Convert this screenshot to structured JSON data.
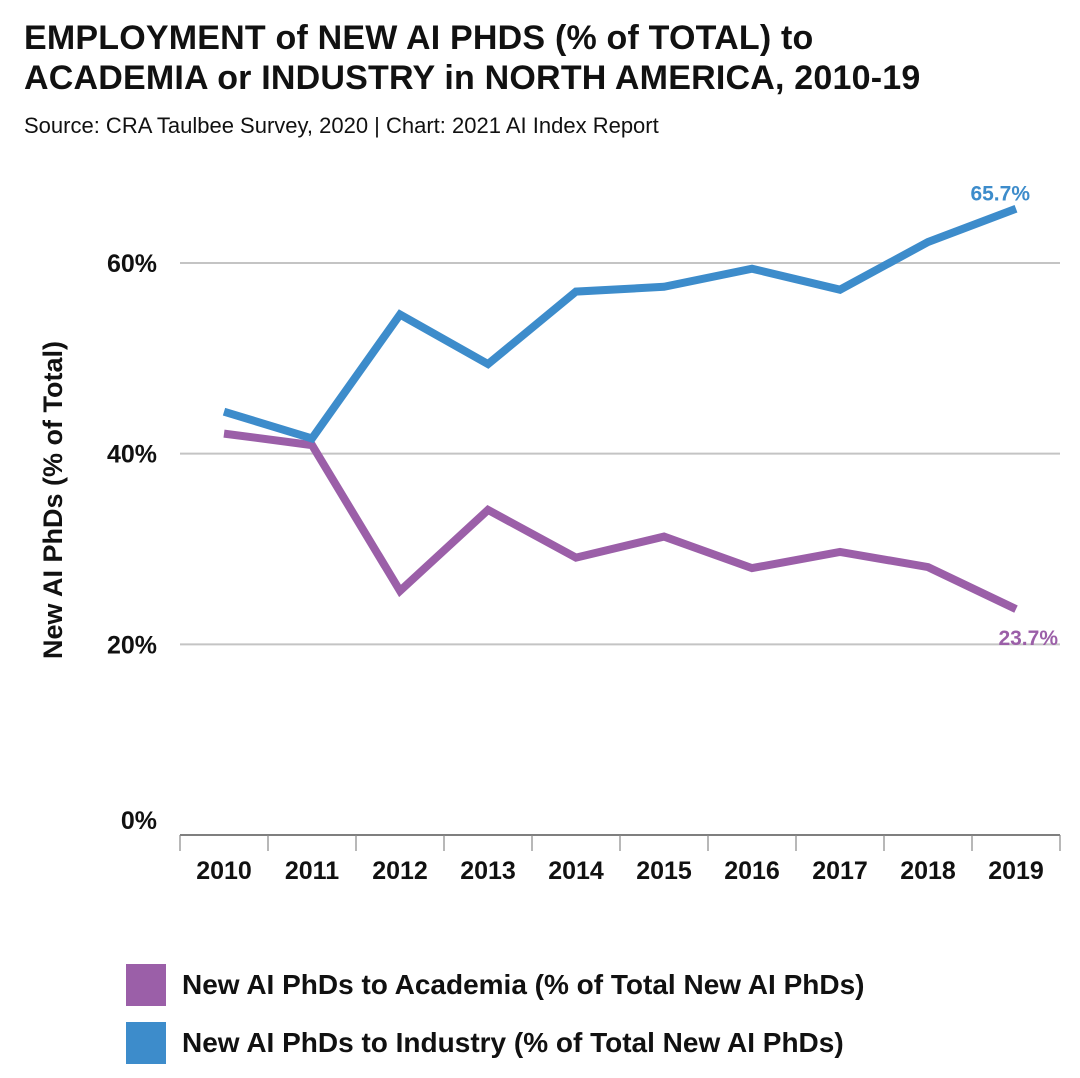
{
  "chart_data": {
    "type": "line",
    "title_lines": [
      "EMPLOYMENT of NEW AI PHDS (% of TOTAL) to",
      "ACADEMIA or INDUSTRY in NORTH AMERICA, 2010-19"
    ],
    "subtitle": "Source: CRA Taulbee Survey, 2020 | Chart: 2021 AI Index Report",
    "ylabel": "New AI PhDs (% of Total)",
    "xlabel": "",
    "ylim": [
      0,
      70
    ],
    "yticks": [
      0,
      20,
      40,
      60
    ],
    "ytick_labels": [
      "0%",
      "20%",
      "40%",
      "60%"
    ],
    "grid": true,
    "categories": [
      "2010",
      "2011",
      "2012",
      "2013",
      "2014",
      "2015",
      "2016",
      "2017",
      "2018",
      "2019"
    ],
    "series": [
      {
        "name": "New AI PhDs to Academia (% of Total New AI PhDs)",
        "color": "#9b5fa8",
        "values": [
          42.1,
          40.9,
          25.6,
          34.1,
          29.1,
          31.3,
          28.0,
          29.7,
          28.1,
          23.7
        ],
        "end_label": "23.7%"
      },
      {
        "name": "New AI PhDs to Industry (% of Total New AI PhDs)",
        "color": "#3d8ccb",
        "values": [
          44.4,
          41.6,
          54.6,
          49.4,
          57.0,
          57.5,
          59.4,
          57.2,
          62.2,
          65.7
        ],
        "end_label": "65.7%"
      }
    ],
    "legend_position": "bottom-left"
  }
}
